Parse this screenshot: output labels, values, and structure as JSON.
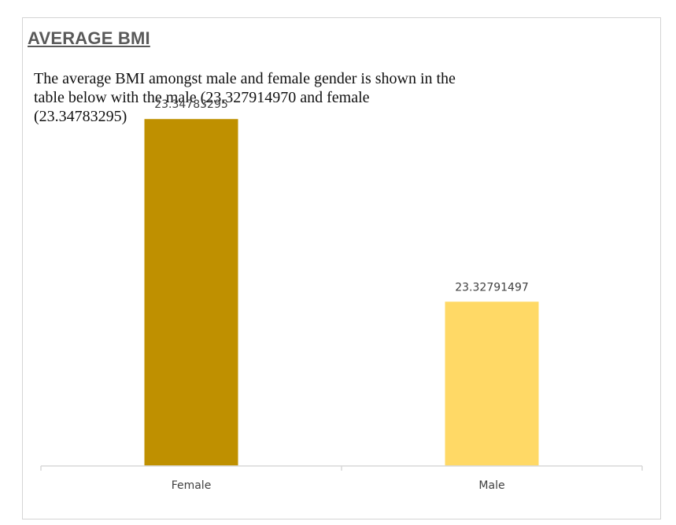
{
  "heading": "AVERAGE BMI",
  "description": "The average BMI amongst male and female gender is shown in the table below with the male (23.327914970 and female (23.34783295)",
  "chart_data": {
    "type": "bar",
    "categories": [
      "Female",
      "Male"
    ],
    "values": [
      23.34783295,
      23.32791497
    ],
    "data_labels": [
      "23.34783295",
      "23.32791497"
    ],
    "colors": [
      "#bf9000",
      "#ffd966"
    ],
    "ylim": [
      23.31,
      23.35
    ],
    "title": "",
    "xlabel": "",
    "ylabel": "",
    "grid": false,
    "legend": "none"
  }
}
